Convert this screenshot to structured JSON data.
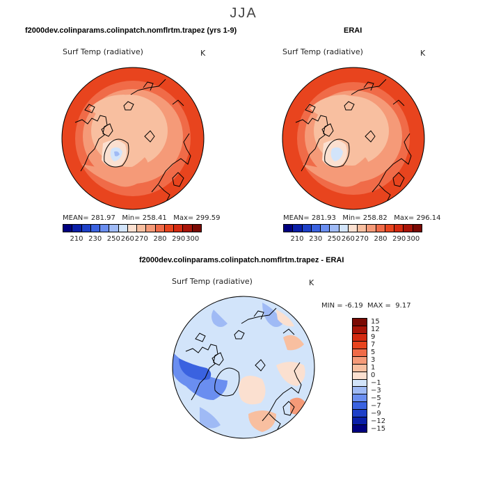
{
  "season_title": "JJA",
  "panels": {
    "model": {
      "title": "f2000dev.colinparams.colinpatch.nomflrtm.trapez (yrs 1-9)",
      "variable": "Surf Temp (radiative)",
      "units": "K",
      "mean_label": "MEAN=",
      "mean": "281.97",
      "min_label": "Min=",
      "min": "258.41",
      "max_label": "Max=",
      "max": "299.59"
    },
    "obs": {
      "title": "ERAI",
      "variable": "Surf Temp (radiative)",
      "units": "K",
      "mean_label": "MEAN=",
      "mean": "281.93",
      "min_label": "Min=",
      "min": "258.82",
      "max_label": "Max=",
      "max": "296.14"
    },
    "diff": {
      "title": "f2000dev.colinparams.colinpatch.nomflrtm.trapez - ERAI",
      "variable": "Surf Temp (radiative)",
      "units": "K",
      "min_label": "MIN =",
      "min": "-6.19",
      "max_label": "MAX =",
      "max": "9.17"
    }
  },
  "abs_colorbar": {
    "colors": [
      "#00007f",
      "#0a1fa8",
      "#1e40c8",
      "#3a62e0",
      "#6a8ef0",
      "#9fbaf5",
      "#d2e4fa",
      "#fbe0d0",
      "#f8bfa0",
      "#f59a78",
      "#f06b48",
      "#e8441e",
      "#d42a10",
      "#a81408",
      "#7a0a04"
    ],
    "tick_labels": [
      "210",
      "230",
      "250",
      "260",
      "270",
      "280",
      "290",
      "300"
    ]
  },
  "diff_colorbar": {
    "colors_top_to_bottom": [
      "#7a0a04",
      "#a81408",
      "#d42a10",
      "#e8441e",
      "#f06b48",
      "#f59a78",
      "#f8bfa0",
      "#fbe0d0",
      "#d2e4fa",
      "#9fbaf5",
      "#6a8ef0",
      "#3a62e0",
      "#1e40c8",
      "#0a1fa8",
      "#00007f"
    ],
    "tick_labels": [
      "15",
      "12",
      "9",
      "7",
      "5",
      "3",
      "1",
      "0",
      "−1",
      "−3",
      "−5",
      "−7",
      "−9",
      "−12",
      "−15"
    ]
  }
}
